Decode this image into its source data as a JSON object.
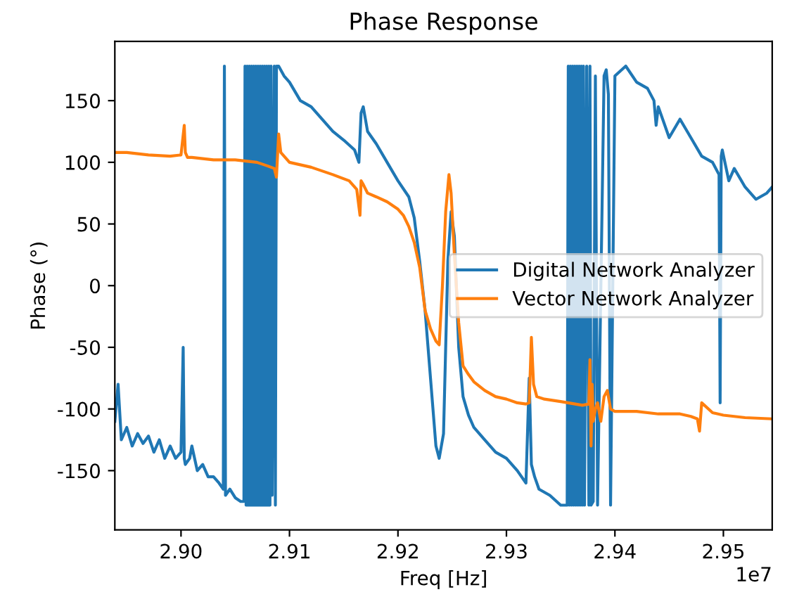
{
  "chart_data": {
    "type": "line",
    "title": "Phase Response",
    "xlabel": "Freq [Hz]",
    "ylabel": "Phase (°)",
    "annotations": [
      "1e7"
    ],
    "xlim": [
      2.8939,
      2.9545
    ],
    "ylim": [
      -198,
      198
    ],
    "xticks": [
      {
        "value": 2.9,
        "label": "2.90"
      },
      2.91,
      2.92,
      2.93,
      2.94,
      2.95
    ],
    "yticks": [
      -150,
      -100,
      -50,
      0,
      50,
      100,
      150
    ],
    "grid": false,
    "legend": "right",
    "marker": "none",
    "line_style": "solid",
    "series": [
      {
        "name": "Digital Network Analyzer",
        "color": "#1f77b4",
        "x": [
          2.8939,
          2.8942,
          2.8945,
          2.895,
          2.8955,
          2.896,
          2.8965,
          2.897,
          2.8975,
          2.898,
          2.8985,
          2.899,
          2.8995,
          2.9,
          2.9002,
          2.9003,
          2.9004,
          2.9008,
          2.901,
          2.9015,
          2.902,
          2.9025,
          2.903,
          2.9035,
          2.9039,
          2.904,
          2.9041,
          2.9045,
          2.905,
          2.9055,
          2.9058,
          2.9059,
          2.906,
          2.9061,
          2.9062,
          2.9063,
          2.9064,
          2.9065,
          2.9066,
          2.9067,
          2.9068,
          2.9069,
          2.907,
          2.9071,
          2.9072,
          2.9073,
          2.9074,
          2.9075,
          2.9076,
          2.9077,
          2.9078,
          2.9079,
          2.908,
          2.9081,
          2.9082,
          2.9083,
          2.9084,
          2.9086,
          2.9087,
          2.9088,
          2.909,
          2.9095,
          2.91,
          2.911,
          2.912,
          2.913,
          2.914,
          2.915,
          2.916,
          2.9164,
          2.9166,
          2.9168,
          2.9172,
          2.918,
          2.919,
          2.92,
          2.921,
          2.9215,
          2.922,
          2.9225,
          2.923,
          2.9235,
          2.9238,
          2.9242,
          2.9246,
          2.9249,
          2.9252,
          2.9256,
          2.926,
          2.9265,
          2.927,
          2.928,
          2.929,
          2.93,
          2.931,
          2.9318,
          2.9321,
          2.9323,
          2.9326,
          2.933,
          2.934,
          2.935,
          2.9356,
          2.9357,
          2.9358,
          2.9359,
          2.936,
          2.9361,
          2.9362,
          2.9363,
          2.9364,
          2.9365,
          2.9366,
          2.9367,
          2.9368,
          2.9369,
          2.937,
          2.9371,
          2.9372,
          2.9374,
          2.9376,
          2.9377,
          2.9378,
          2.938,
          2.9382,
          2.9384,
          2.939,
          2.9392,
          2.9393,
          2.9394,
          2.9396,
          2.94,
          2.941,
          2.942,
          2.943,
          2.9436,
          2.9437,
          2.9438,
          2.944,
          2.945,
          2.946,
          2.947,
          2.948,
          2.949,
          2.9496,
          2.9497,
          2.9498,
          2.9499,
          2.9505,
          2.951,
          2.952,
          2.953,
          2.954,
          2.9545
        ],
        "values": [
          -110,
          -80,
          -125,
          -115,
          -130,
          -120,
          -128,
          -122,
          -135,
          -125,
          -140,
          -130,
          -140,
          -135,
          -50,
          -140,
          -145,
          -140,
          -130,
          -150,
          -145,
          -155,
          -155,
          -160,
          -165,
          178,
          -170,
          -165,
          -172,
          -175,
          -175,
          178,
          -178,
          178,
          -178,
          178,
          -178,
          178,
          -178,
          178,
          -178,
          178,
          -178,
          178,
          -178,
          178,
          -178,
          178,
          -178,
          178,
          -178,
          178,
          -178,
          178,
          -178,
          178,
          -170,
          178,
          -178,
          178,
          178,
          170,
          165,
          150,
          145,
          135,
          125,
          118,
          110,
          100,
          140,
          145,
          125,
          115,
          100,
          85,
          72,
          55,
          20,
          -20,
          -75,
          -130,
          -140,
          -120,
          20,
          60,
          40,
          -50,
          -90,
          -105,
          -115,
          -125,
          -135,
          -140,
          -150,
          -160,
          -75,
          -145,
          -155,
          -165,
          -170,
          -178,
          -178,
          178,
          -178,
          178,
          -178,
          178,
          -178,
          178,
          -178,
          178,
          -178,
          178,
          -178,
          178,
          -178,
          178,
          -178,
          178,
          -178,
          178,
          -178,
          -175,
          170,
          -178,
          170,
          175,
          165,
          155,
          -178,
          170,
          178,
          165,
          160,
          150,
          140,
          130,
          145,
          120,
          135,
          120,
          105,
          100,
          90,
          -95,
          105,
          110,
          85,
          95,
          80,
          70,
          75,
          80
        ]
      },
      {
        "name": "Vector Network Analyzer",
        "color": "#ff7f0e",
        "x": [
          2.8939,
          2.895,
          2.897,
          2.899,
          2.9,
          2.9003,
          2.9004,
          2.9006,
          2.901,
          2.903,
          2.905,
          2.907,
          2.908,
          2.9086,
          2.9088,
          2.909,
          2.9092,
          2.9095,
          2.91,
          2.912,
          2.914,
          2.9155,
          2.9162,
          2.9165,
          2.9166,
          2.9168,
          2.9172,
          2.918,
          2.919,
          2.92,
          2.9205,
          2.921,
          2.9215,
          2.922,
          2.9225,
          2.923,
          2.9235,
          2.9238,
          2.9241,
          2.9244,
          2.9247,
          2.9249,
          2.9252,
          2.9256,
          2.926,
          2.9265,
          2.927,
          2.928,
          2.929,
          2.93,
          2.931,
          2.9318,
          2.9321,
          2.9323,
          2.9325,
          2.9328,
          2.9335,
          2.935,
          2.937,
          2.9376,
          2.9377,
          2.9378,
          2.9379,
          2.938,
          2.9382,
          2.9384,
          2.9387,
          2.939,
          2.9393,
          2.9396,
          2.94,
          2.942,
          2.944,
          2.946,
          2.947,
          2.9476,
          2.9478,
          2.948,
          2.949,
          2.95,
          2.952,
          2.9545
        ],
        "values": [
          108,
          108,
          106,
          105,
          106,
          130,
          108,
          104,
          104,
          102,
          102,
          100,
          97,
          95,
          88,
          123,
          108,
          105,
          100,
          96,
          90,
          85,
          78,
          57,
          85,
          82,
          75,
          72,
          68,
          62,
          57,
          48,
          35,
          15,
          -20,
          -35,
          -45,
          -48,
          0,
          60,
          90,
          75,
          25,
          -30,
          -65,
          -72,
          -78,
          -85,
          -90,
          -92,
          -95,
          -96,
          -95,
          -42,
          -80,
          -90,
          -92,
          -94,
          -97,
          -96,
          -60,
          -130,
          -80,
          -110,
          -100,
          -95,
          -110,
          -90,
          -85,
          -100,
          -102,
          -102,
          -104,
          -104,
          -106,
          -108,
          -118,
          -95,
          -103,
          -105,
          -107,
          -108
        ]
      }
    ]
  }
}
